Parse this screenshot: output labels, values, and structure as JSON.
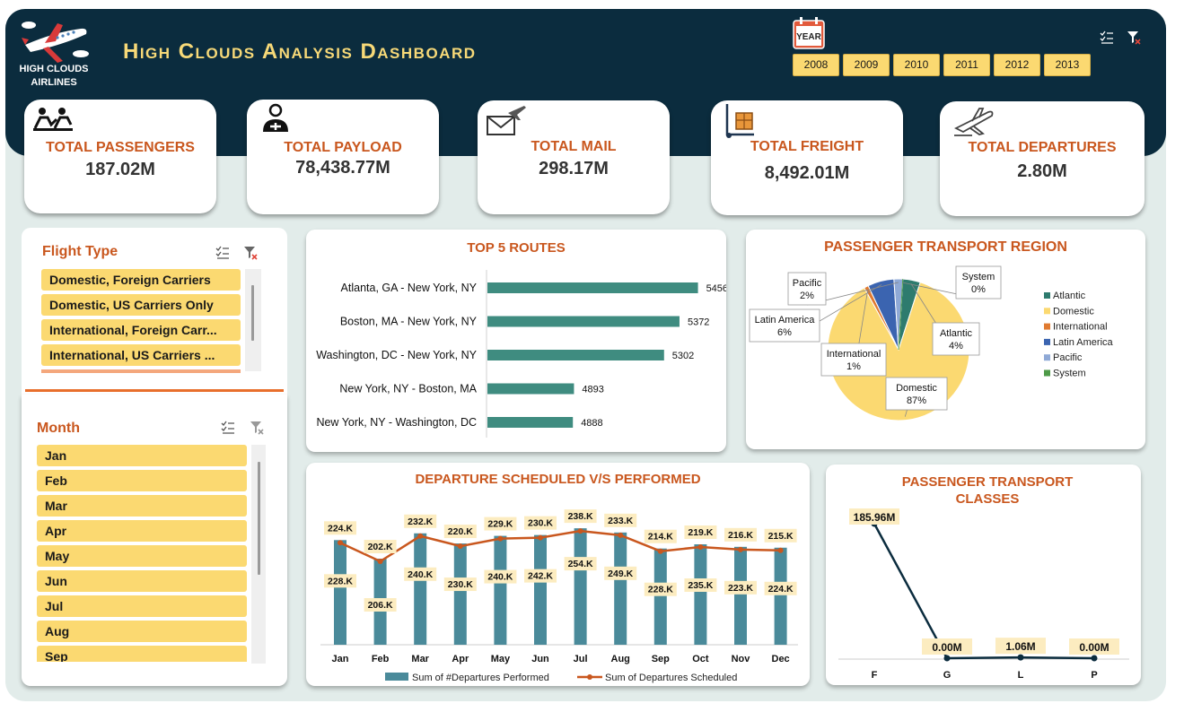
{
  "header": {
    "logo_text_line1": "HIGH CLOUDS",
    "logo_text_line2": "AIRLINES",
    "title": "High Clouds Analysis Dashboard",
    "year_icon_label": "YEAR",
    "years": [
      "2008",
      "2009",
      "2010",
      "2011",
      "2012",
      "2013"
    ]
  },
  "kpis": [
    {
      "label": "TOTAL PASSENGERS",
      "value": "187.02M",
      "icon": "passengers-icon"
    },
    {
      "label": "TOTAL PAYLOAD",
      "value": "78,438.77M",
      "icon": "payload-icon"
    },
    {
      "label": "TOTAL MAIL",
      "value": "298.17M",
      "icon": "mail-icon"
    },
    {
      "label": "TOTAL FREIGHT",
      "value": "8,492.01M",
      "icon": "freight-icon"
    },
    {
      "label": "TOTAL DEPARTURES",
      "value": "2.80M",
      "icon": "departures-icon"
    }
  ],
  "flight_type": {
    "title": "Flight Type",
    "items": [
      "Domestic, Foreign Carriers",
      "Domestic, US Carriers Only",
      "International, Foreign Carr...",
      "International, US Carriers ..."
    ]
  },
  "month": {
    "title": "Month",
    "items": [
      "Jan",
      "Feb",
      "Mar",
      "Apr",
      "May",
      "Jun",
      "Jul",
      "Aug",
      "Sep"
    ]
  },
  "colors": {
    "teal": "#3f8c80",
    "yellow": "#fbd971",
    "orange": "#c9571e",
    "navy": "#0b2c3e",
    "bar_blue": "#4a8a9a",
    "line_orange": "#c9571e"
  },
  "chart_data": [
    {
      "type": "bar",
      "title": "TOP 5 ROUTES",
      "orientation": "horizontal",
      "categories": [
        "Atlanta, GA - New York, NY",
        "Boston, MA - New York, NY",
        "Washington, DC - New York, NY",
        "New York, NY - Boston, MA",
        "New York, NY - Washington, DC"
      ],
      "values": [
        5456,
        5372,
        5302,
        4893,
        4888
      ],
      "value_labels": [
        "5456",
        "5372",
        "5302",
        "4893",
        "4888"
      ],
      "xlim": [
        4500,
        5470
      ]
    },
    {
      "type": "pie",
      "title": "PASSENGER TRANSPORT REGION",
      "categories": [
        "Atlantic",
        "Domestic",
        "International",
        "Latin America",
        "Pacific",
        "System"
      ],
      "values": [
        4,
        87,
        1,
        6,
        2,
        0
      ],
      "value_labels": [
        "4%",
        "87%",
        "1%",
        "6%",
        "2%",
        "0%"
      ],
      "colors": [
        "#2e7b6e",
        "#fbd971",
        "#e07a30",
        "#3b64b0",
        "#8fa9d6",
        "#4e9a48"
      ],
      "legend": "right"
    },
    {
      "type": "bar",
      "title": "DEPARTURE SCHEDULED V/S PERFORMED",
      "categories": [
        "Jan",
        "Feb",
        "Mar",
        "Apr",
        "May",
        "Jun",
        "Jul",
        "Aug",
        "Sep",
        "Oct",
        "Nov",
        "Dec"
      ],
      "series": [
        {
          "name": "Sum of #Departures Performed",
          "kind": "bar",
          "values": [
            224,
            202,
            232,
            220,
            229,
            230,
            238,
            233,
            214,
            219,
            216,
            215
          ],
          "labels": [
            "224.K",
            "202.K",
            "232.K",
            "220.K",
            "229.K",
            "230.K",
            "238.K",
            "233.K",
            "214.K",
            "219.K",
            "216.K",
            "215.K"
          ]
        },
        {
          "name": "Sum of Departures Scheduled",
          "kind": "line",
          "values": [
            228,
            206,
            240,
            230,
            240,
            242,
            254,
            249,
            228,
            235,
            223,
            224
          ],
          "labels": [
            "228.K",
            "206.K",
            "240.K",
            "230.K",
            "240.K",
            "242.K",
            "254.K",
            "249.K",
            "228.K",
            "235.K",
            "223.K",
            "224.K"
          ]
        }
      ],
      "legend": "bottom"
    },
    {
      "type": "line",
      "title": "PASSENGER TRANSPORT CLASSES",
      "categories": [
        "F",
        "G",
        "L",
        "P"
      ],
      "values": [
        185.96,
        0.0,
        1.06,
        0.0
      ],
      "value_labels": [
        "185.96M",
        "0.00M",
        "1.06M",
        "0.00M"
      ]
    }
  ]
}
